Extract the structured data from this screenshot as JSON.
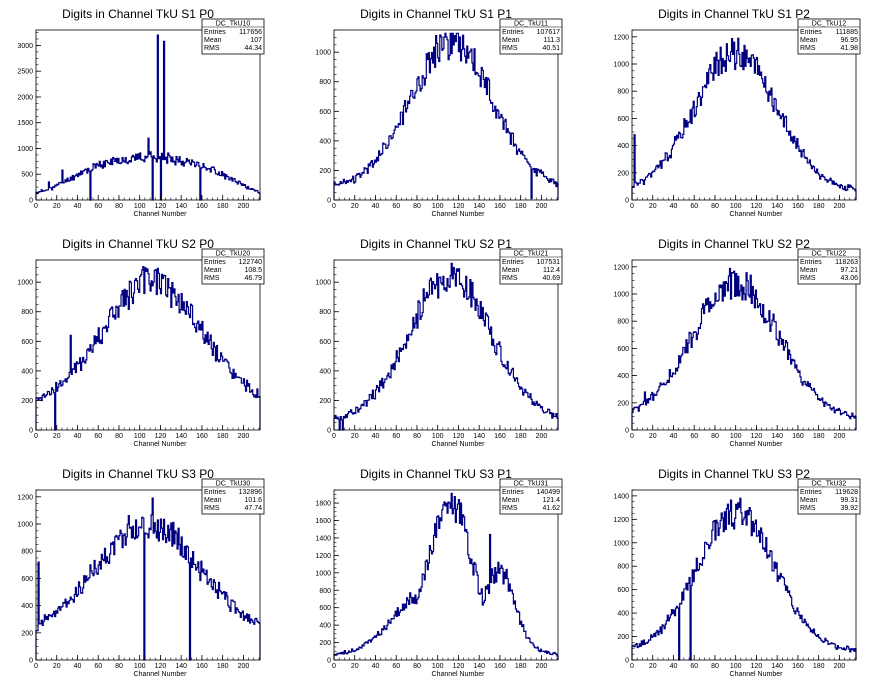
{
  "page_title": "",
  "chart_data": [
    {
      "type": "histogram",
      "title": "Digits in Channel TkU S1 P0",
      "xlabel": "Channel Number",
      "ylabel": "",
      "xlim": [
        0,
        216
      ],
      "ylim": [
        0,
        3300
      ],
      "x_ticks": [
        0,
        20,
        40,
        60,
        80,
        100,
        120,
        140,
        160,
        180,
        200
      ],
      "y_ticks": [
        0,
        500,
        1000,
        1500,
        2000,
        2500,
        3000
      ],
      "stats": {
        "name": "DC_TkU10",
        "entries": "117656",
        "mean": "107",
        "rms": "44.34"
      },
      "shape": {
        "kind": "flat",
        "base": 100,
        "peak": 850,
        "center": 110,
        "sigma": 55,
        "seed": 11
      },
      "spikes": [
        {
          "x": 117,
          "y": 3200
        },
        {
          "x": 123,
          "y": 3080
        },
        {
          "x": 108,
          "y": 1200
        },
        {
          "x": 112,
          "y": 0
        },
        {
          "x": 120,
          "y": 0
        },
        {
          "x": 52,
          "y": 0
        },
        {
          "x": 158,
          "y": 0
        },
        {
          "x": 12,
          "y": 350
        },
        {
          "x": 25,
          "y": 580
        }
      ]
    },
    {
      "type": "histogram",
      "title": "Digits in Channel TkU S1 P1",
      "xlabel": "Channel Number",
      "ylabel": "",
      "xlim": [
        0,
        216
      ],
      "ylim": [
        0,
        1150
      ],
      "x_ticks": [
        0,
        20,
        40,
        60,
        80,
        100,
        120,
        140,
        160,
        180,
        200
      ],
      "y_ticks": [
        0,
        200,
        400,
        600,
        800,
        1000
      ],
      "stats": {
        "name": "DC_TkU11",
        "entries": "107617",
        "mean": "111.3",
        "rms": "40.51"
      },
      "shape": {
        "kind": "gauss",
        "base": 80,
        "peak": 1070,
        "center": 113,
        "sigma": 40,
        "seed": 23
      },
      "spikes": [
        {
          "x": 190,
          "y": 10
        },
        {
          "x": 200,
          "y": 180
        }
      ]
    },
    {
      "type": "histogram",
      "title": "Digits in Channel TkU S1 P2",
      "xlabel": "Channel Number",
      "ylabel": "",
      "xlim": [
        0,
        216
      ],
      "ylim": [
        0,
        1250
      ],
      "x_ticks": [
        0,
        20,
        40,
        60,
        80,
        100,
        120,
        140,
        160,
        180,
        200
      ],
      "y_ticks": [
        0,
        200,
        400,
        600,
        800,
        1000,
        1200
      ],
      "stats": {
        "name": "DC_TkU12",
        "entries": "111885",
        "mean": "96.95",
        "rms": "41.98"
      },
      "shape": {
        "kind": "gauss",
        "base": 60,
        "peak": 1080,
        "center": 100,
        "sigma": 40,
        "seed": 31
      },
      "spikes": [
        {
          "x": 2,
          "y": 480
        },
        {
          "x": 98,
          "y": 1160
        }
      ]
    },
    {
      "type": "histogram",
      "title": "Digits in Channel TkU S2 P0",
      "xlabel": "Channel Number",
      "ylabel": "",
      "xlim": [
        0,
        216
      ],
      "ylim": [
        0,
        1150
      ],
      "x_ticks": [
        0,
        20,
        40,
        60,
        80,
        100,
        120,
        140,
        160,
        180,
        200
      ],
      "y_ticks": [
        0,
        200,
        400,
        600,
        800,
        1000
      ],
      "stats": {
        "name": "DC_TkU20",
        "entries": "122740",
        "mean": "108.5",
        "rms": "46.79"
      },
      "shape": {
        "kind": "gauss",
        "base": 150,
        "peak": 1000,
        "center": 112,
        "sigma": 48,
        "seed": 41
      },
      "spikes": [
        {
          "x": 33,
          "y": 640
        },
        {
          "x": 18,
          "y": 0
        },
        {
          "x": 118,
          "y": 1060
        }
      ]
    },
    {
      "type": "histogram",
      "title": "Digits in Channel TkU S2 P1",
      "xlabel": "Channel Number",
      "ylabel": "",
      "xlim": [
        0,
        216
      ],
      "ylim": [
        0,
        1150
      ],
      "x_ticks": [
        0,
        20,
        40,
        60,
        80,
        100,
        120,
        140,
        160,
        180,
        200
      ],
      "y_ticks": [
        0,
        200,
        400,
        600,
        800,
        1000
      ],
      "stats": {
        "name": "DC_TkU21",
        "entries": "107531",
        "mean": "112.4",
        "rms": "40.69"
      },
      "shape": {
        "kind": "gauss",
        "base": 60,
        "peak": 1030,
        "center": 112,
        "sigma": 40,
        "seed": 53
      },
      "spikes": [
        {
          "x": 5,
          "y": 0
        },
        {
          "x": 8,
          "y": 0
        },
        {
          "x": 210,
          "y": 80
        }
      ]
    },
    {
      "type": "histogram",
      "title": "Digits in Channel TkU S2 P2",
      "xlabel": "Channel Number",
      "ylabel": "",
      "xlim": [
        0,
        216
      ],
      "ylim": [
        0,
        1250
      ],
      "x_ticks": [
        0,
        20,
        40,
        60,
        80,
        100,
        120,
        140,
        160,
        180,
        200
      ],
      "y_ticks": [
        0,
        200,
        400,
        600,
        800,
        1000,
        1200
      ],
      "stats": {
        "name": "DC_TkU22",
        "entries": "118263",
        "mean": "97.21",
        "rms": "43.06"
      },
      "shape": {
        "kind": "gauss",
        "base": 80,
        "peak": 1070,
        "center": 100,
        "sigma": 42,
        "seed": 61
      },
      "spikes": [
        {
          "x": 12,
          "y": 280
        },
        {
          "x": 100,
          "y": 1150
        }
      ]
    },
    {
      "type": "histogram",
      "title": "Digits in Channel TkU S3 P0",
      "xlabel": "Channel Number",
      "ylabel": "",
      "xlim": [
        0,
        216
      ],
      "ylim": [
        0,
        1250
      ],
      "x_ticks": [
        0,
        20,
        40,
        60,
        80,
        100,
        120,
        140,
        160,
        180,
        200
      ],
      "y_ticks": [
        0,
        200,
        400,
        600,
        800,
        1000,
        1200
      ],
      "stats": {
        "name": "DC_TkU30",
        "entries": "132896",
        "mean": "101.6",
        "rms": "47.74"
      },
      "shape": {
        "kind": "gauss",
        "base": 180,
        "peak": 1000,
        "center": 108,
        "sigma": 50,
        "seed": 71
      },
      "spikes": [
        {
          "x": 2,
          "y": 720
        },
        {
          "x": 104,
          "y": 0
        },
        {
          "x": 148,
          "y": 0
        },
        {
          "x": 112,
          "y": 1190
        }
      ]
    },
    {
      "type": "histogram",
      "title": "Digits in Channel TkU S3 P1",
      "xlabel": "Channel Number",
      "ylabel": "",
      "xlim": [
        0,
        216
      ],
      "ylim": [
        0,
        1950
      ],
      "x_ticks": [
        0,
        20,
        40,
        60,
        80,
        100,
        120,
        140,
        160,
        180,
        200
      ],
      "y_ticks": [
        0,
        200,
        400,
        600,
        800,
        1000,
        1200,
        1400,
        1600,
        1800
      ],
      "stats": {
        "name": "DC_TkU31",
        "entries": "140499",
        "mean": "121.4",
        "rms": "41.62"
      },
      "shape": {
        "kind": "double",
        "base": 40,
        "peak": 1500,
        "center": 112,
        "sigma": 20,
        "seed": 83
      },
      "spikes": [
        {
          "x": 105,
          "y": 1780
        },
        {
          "x": 120,
          "y": 1840
        },
        {
          "x": 150,
          "y": 1440
        }
      ]
    },
    {
      "type": "histogram",
      "title": "Digits in Channel TkU S3 P2",
      "xlabel": "Channel Number",
      "ylabel": "",
      "xlim": [
        0,
        216
      ],
      "ylim": [
        0,
        1450
      ],
      "x_ticks": [
        0,
        20,
        40,
        60,
        80,
        100,
        120,
        140,
        160,
        180,
        200
      ],
      "y_ticks": [
        0,
        200,
        400,
        600,
        800,
        1000,
        1200,
        1400
      ],
      "stats": {
        "name": "DC_TkU32",
        "entries": "119628",
        "mean": "99.31",
        "rms": "39.92"
      },
      "shape": {
        "kind": "gauss",
        "base": 70,
        "peak": 1250,
        "center": 100,
        "sigma": 38,
        "seed": 97
      },
      "spikes": [
        {
          "x": 45,
          "y": 0
        },
        {
          "x": 56,
          "y": 0
        },
        {
          "x": 102,
          "y": 1340
        }
      ]
    }
  ],
  "style": {
    "line_color": "#000080",
    "frame_color": "#000000",
    "background": "#ffffff"
  },
  "labels": {
    "entries": "Entries",
    "mean": "Mean",
    "rms": "RMS"
  }
}
